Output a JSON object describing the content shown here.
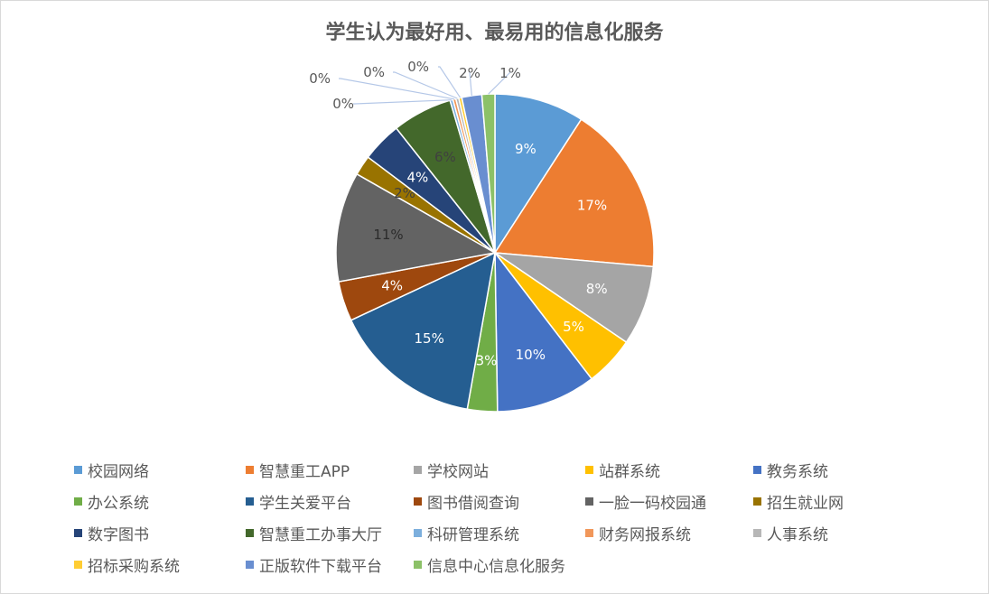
{
  "chart_data": {
    "type": "pie",
    "title": "学生认为最好用、最易用的信息化服务",
    "legend_position": "bottom",
    "slices": [
      {
        "label": "校园网络",
        "value": 9,
        "data_label": "9%",
        "color": "#5B9BD5"
      },
      {
        "label": "智慧重工APP",
        "value": 17,
        "data_label": "17%",
        "color": "#ED7D31"
      },
      {
        "label": "学校网站",
        "value": 8,
        "data_label": "8%",
        "color": "#A5A5A5"
      },
      {
        "label": "站群系统",
        "value": 5,
        "data_label": "5%",
        "color": "#FFC000"
      },
      {
        "label": "教务系统",
        "value": 10,
        "data_label": "10%",
        "color": "#4472C4"
      },
      {
        "label": "办公系统",
        "value": 3,
        "data_label": "3%",
        "color": "#70AD47"
      },
      {
        "label": "学生关爱平台",
        "value": 15,
        "data_label": "15%",
        "color": "#255E91"
      },
      {
        "label": "图书借阅查询",
        "value": 4,
        "data_label": "4%",
        "color": "#9E480E"
      },
      {
        "label": "一脸一码校园通",
        "value": 11,
        "data_label": "11%",
        "color": "#636363"
      },
      {
        "label": "招生就业网",
        "value": 2,
        "data_label": "2%",
        "color": "#997300"
      },
      {
        "label": "数字图书",
        "value": 4,
        "data_label": "4%",
        "color": "#264478"
      },
      {
        "label": "智慧重工办事大厅",
        "value": 6,
        "data_label": "6%",
        "color": "#43682B"
      },
      {
        "label": "科研管理系统",
        "value": 0.3,
        "data_label": "0%",
        "color": "#7CAFDD"
      },
      {
        "label": "财务网报系统",
        "value": 0.3,
        "data_label": "0%",
        "color": "#F1975A"
      },
      {
        "label": "人事系统",
        "value": 0.3,
        "data_label": "0%",
        "color": "#B7B7B7"
      },
      {
        "label": "招标采购系统",
        "value": 0.3,
        "data_label": "0%",
        "color": "#FFCD33"
      },
      {
        "label": "正版软件下载平台",
        "value": 2,
        "data_label": "2%",
        "color": "#698ED0"
      },
      {
        "label": "信息中心信息化服务",
        "value": 1.3,
        "data_label": "1%",
        "color": "#8CC168"
      }
    ]
  }
}
